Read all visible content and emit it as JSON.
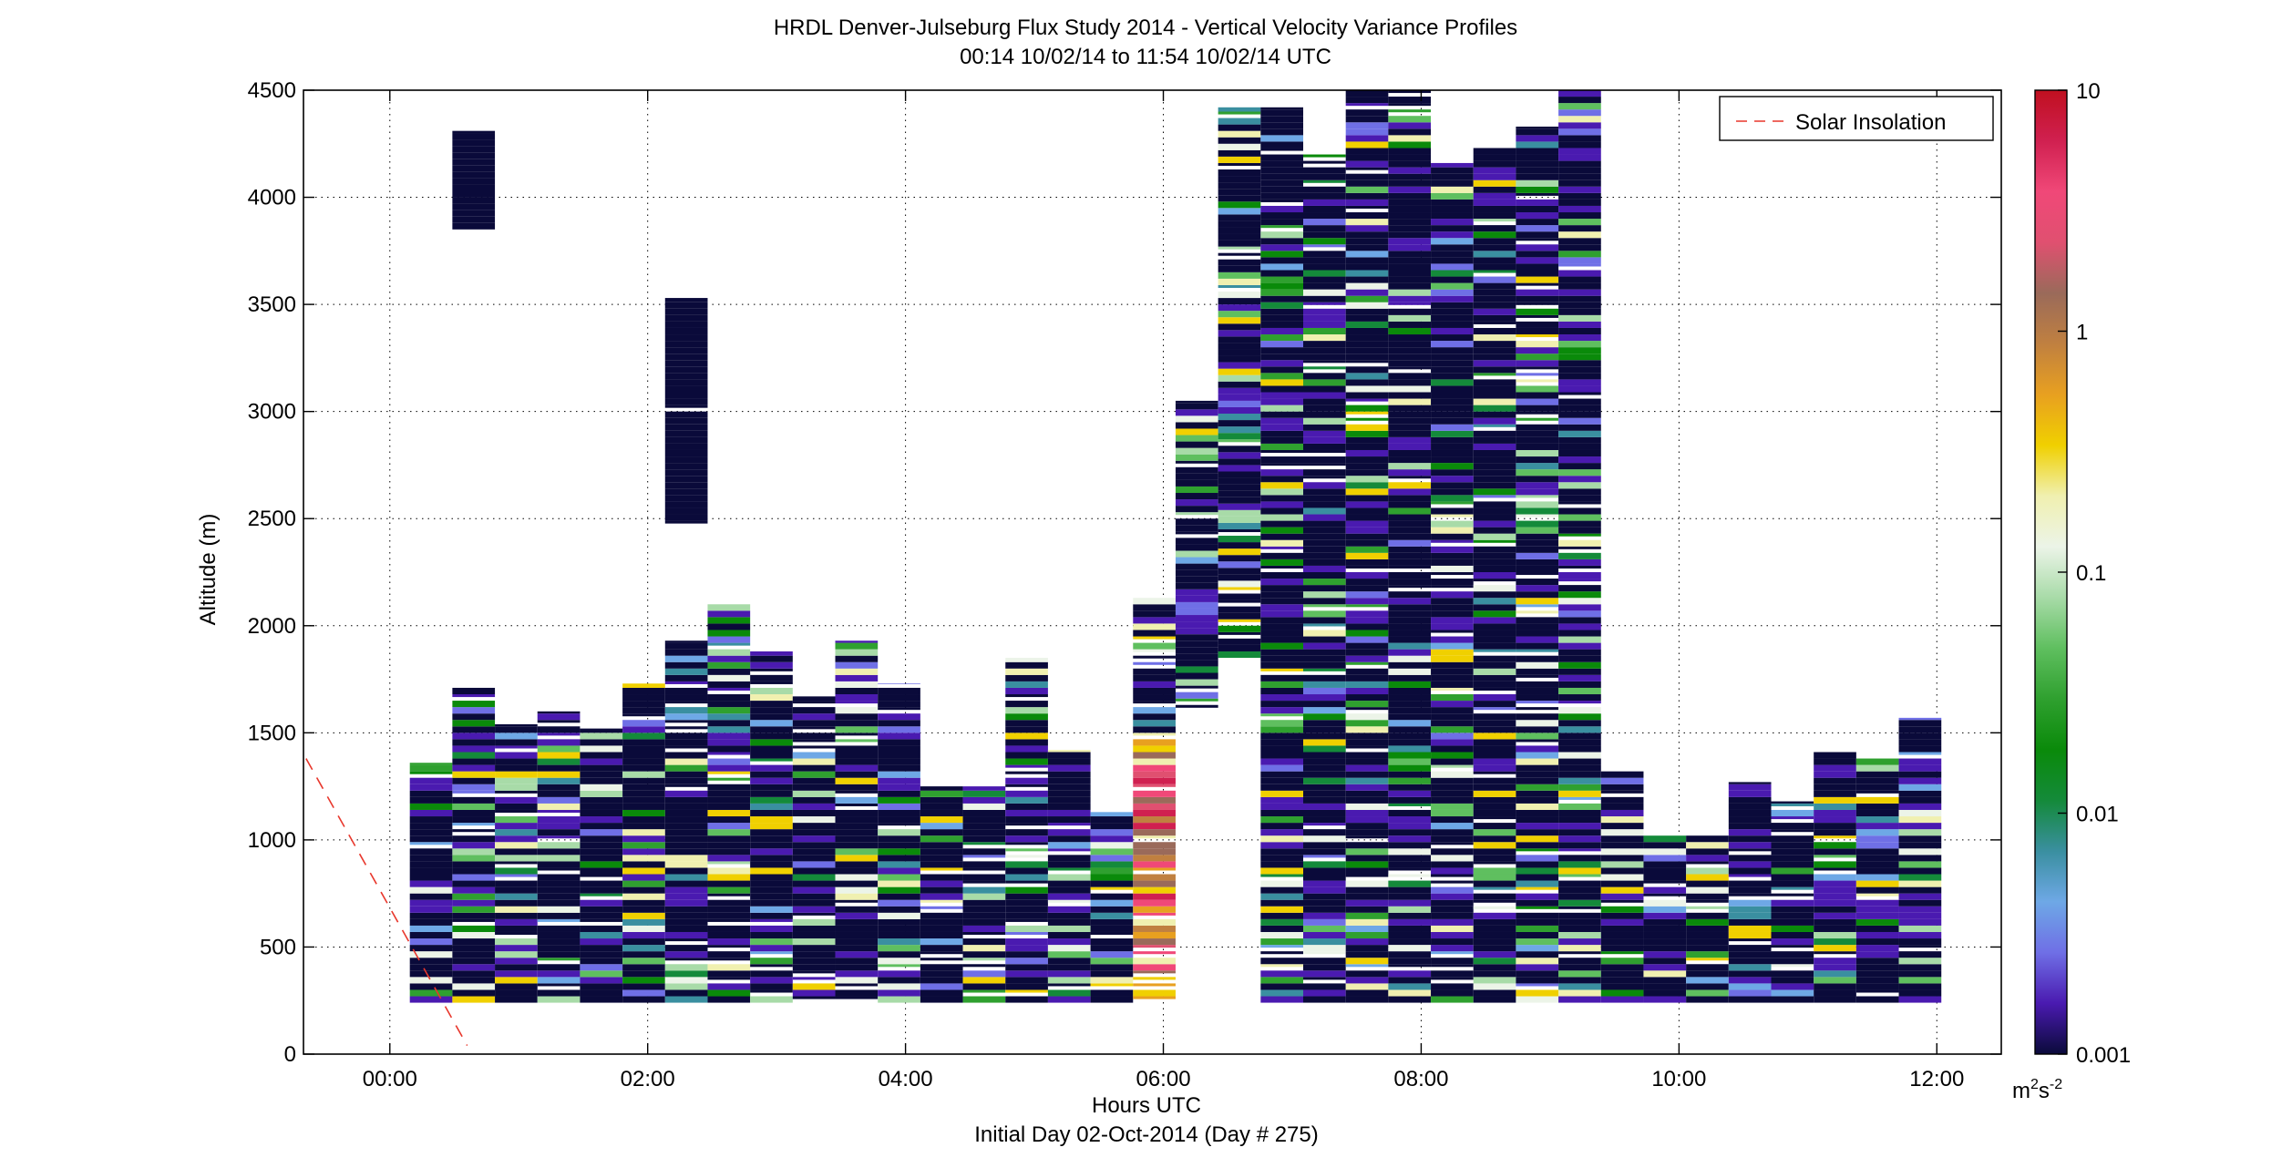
{
  "chart_data": {
    "type": "heatmap",
    "title": "HRDL Denver-Julseburg Flux Study 2014 - Vertical Velocity Variance Profiles",
    "subtitle": "00:14 10/02/14 to 11:54 10/02/14  UTC",
    "xlabel": "Hours UTC",
    "xlabel2": "Initial Day 02-Oct-2014 (Day # 275)",
    "ylabel": "Altitude (m)",
    "x_unit": "hours",
    "xlim": [
      -0.67,
      12.5
    ],
    "ylim": [
      0,
      4500
    ],
    "x_ticks": [
      {
        "value": 0,
        "label": "00:00"
      },
      {
        "value": 2,
        "label": "02:00"
      },
      {
        "value": 4,
        "label": "04:00"
      },
      {
        "value": 6,
        "label": "06:00"
      },
      {
        "value": 8,
        "label": "08:00"
      },
      {
        "value": 10,
        "label": "10:00"
      },
      {
        "value": 12,
        "label": "12:00"
      }
    ],
    "y_ticks": [
      {
        "value": 0,
        "label": "0"
      },
      {
        "value": 500,
        "label": "500"
      },
      {
        "value": 1000,
        "label": "1000"
      },
      {
        "value": 1500,
        "label": "1500"
      },
      {
        "value": 2000,
        "label": "2000"
      },
      {
        "value": 2500,
        "label": "2500"
      },
      {
        "value": 3000,
        "label": "3000"
      },
      {
        "value": 3500,
        "label": "3500"
      },
      {
        "value": 4000,
        "label": "4000"
      },
      {
        "value": 4500,
        "label": "4500"
      }
    ],
    "grid": true,
    "legend": {
      "position": "top-right",
      "entries": [
        {
          "name": "Solar Insolation",
          "color": "#e8372c",
          "style": "dashed"
        }
      ]
    },
    "colorbar": {
      "scale": "log",
      "range": [
        0.001,
        10
      ],
      "ticks": [
        {
          "value": 0.001,
          "label": "0.001"
        },
        {
          "value": 0.01,
          "label": "0.01"
        },
        {
          "value": 0.1,
          "label": "0.1"
        },
        {
          "value": 1,
          "label": "1"
        },
        {
          "value": 10,
          "label": "10"
        }
      ],
      "unit_base": "m",
      "unit_sup1": "2",
      "unit_mid": "s",
      "unit_sup2": "-2",
      "colors": [
        "#0a0a3a",
        "#4a1ab0",
        "#6f6fe6",
        "#6ea8e6",
        "#3a8fa0",
        "#148a3a",
        "#0a8a0a",
        "#2fa02f",
        "#5fbf5f",
        "#a8dba8",
        "#ecf4e8",
        "#f0f0b0",
        "#f0d000",
        "#e8a020",
        "#c08040",
        "#9a6a5a",
        "#e05070",
        "#f04878",
        "#d02050",
        "#c01020"
      ]
    },
    "solar_insolation": [
      {
        "x": -0.65,
        "y": 1380
      },
      {
        "x": 0.6,
        "y": 40
      }
    ],
    "profiles": [
      {
        "x": 0.32,
        "top": 1360,
        "bottom": 240,
        "dominant": "mixed"
      },
      {
        "x": 0.65,
        "top": 1720,
        "bottom": 240,
        "dominant": "mixed"
      },
      {
        "x": 0.65,
        "top": 4310,
        "bottom": 3850,
        "dominant": 0.001
      },
      {
        "x": 0.98,
        "top": 1540,
        "bottom": 240,
        "dominant": "mixed"
      },
      {
        "x": 1.31,
        "top": 1600,
        "bottom": 240,
        "dominant": "mixed"
      },
      {
        "x": 1.64,
        "top": 1520,
        "bottom": 240,
        "dominant": "mixed"
      },
      {
        "x": 1.97,
        "top": 1730,
        "bottom": 240,
        "dominant": "mixed"
      },
      {
        "x": 2.3,
        "top": 1930,
        "bottom": 240,
        "dominant": "mixed"
      },
      {
        "x": 2.3,
        "top": 3530,
        "bottom": 2460,
        "dominant": 0.001
      },
      {
        "x": 2.63,
        "top": 2100,
        "bottom": 240,
        "dominant": "mixed"
      },
      {
        "x": 2.96,
        "top": 1880,
        "bottom": 240,
        "dominant": "mixed"
      },
      {
        "x": 3.29,
        "top": 1670,
        "bottom": 240,
        "dominant": "mixed"
      },
      {
        "x": 3.62,
        "top": 1930,
        "bottom": 240,
        "dominant": "mixed"
      },
      {
        "x": 3.95,
        "top": 1730,
        "bottom": 240,
        "dominant": "mixed"
      },
      {
        "x": 4.28,
        "top": 1250,
        "bottom": 240,
        "dominant": "mixed"
      },
      {
        "x": 4.61,
        "top": 1250,
        "bottom": 240,
        "dominant": "mixed"
      },
      {
        "x": 4.94,
        "top": 1850,
        "bottom": 240,
        "dominant": "mixed"
      },
      {
        "x": 5.27,
        "top": 1420,
        "bottom": 240,
        "dominant": "mixed"
      },
      {
        "x": 5.6,
        "top": 1130,
        "bottom": 240,
        "dominant": "mixed"
      },
      {
        "x": 5.93,
        "top": 2130,
        "bottom": 240,
        "dominant": "mixed"
      },
      {
        "x": 6.26,
        "top": 3050,
        "bottom": 1600,
        "dominant": "mixed"
      },
      {
        "x": 6.59,
        "top": 4420,
        "bottom": 1850,
        "dominant": "mixed"
      },
      {
        "x": 6.92,
        "top": 4420,
        "bottom": 240,
        "dominant": "mixed"
      },
      {
        "x": 7.25,
        "top": 4200,
        "bottom": 240,
        "dominant": "mixed"
      },
      {
        "x": 7.58,
        "top": 4500,
        "bottom": 240,
        "dominant": "mixed"
      },
      {
        "x": 7.91,
        "top": 4500,
        "bottom": 240,
        "dominant": "mixed"
      },
      {
        "x": 8.24,
        "top": 4160,
        "bottom": 240,
        "dominant": "mixed"
      },
      {
        "x": 8.57,
        "top": 4230,
        "bottom": 240,
        "dominant": "mixed"
      },
      {
        "x": 8.9,
        "top": 4330,
        "bottom": 240,
        "dominant": "mixed"
      },
      {
        "x": 9.23,
        "top": 4500,
        "bottom": 240,
        "dominant": "mixed"
      },
      {
        "x": 9.56,
        "top": 1320,
        "bottom": 240,
        "dominant": "mixed"
      },
      {
        "x": 9.89,
        "top": 1020,
        "bottom": 240,
        "dominant": "mixed"
      },
      {
        "x": 10.22,
        "top": 1020,
        "bottom": 240,
        "dominant": "mixed"
      },
      {
        "x": 10.55,
        "top": 1270,
        "bottom": 240,
        "dominant": "mixed"
      },
      {
        "x": 10.88,
        "top": 1180,
        "bottom": 240,
        "dominant": "mixed"
      },
      {
        "x": 11.21,
        "top": 1410,
        "bottom": 240,
        "dominant": "mixed"
      },
      {
        "x": 11.54,
        "top": 1380,
        "bottom": 240,
        "dominant": "mixed"
      },
      {
        "x": 11.87,
        "top": 1570,
        "bottom": 240,
        "dominant": "mixed"
      }
    ]
  }
}
